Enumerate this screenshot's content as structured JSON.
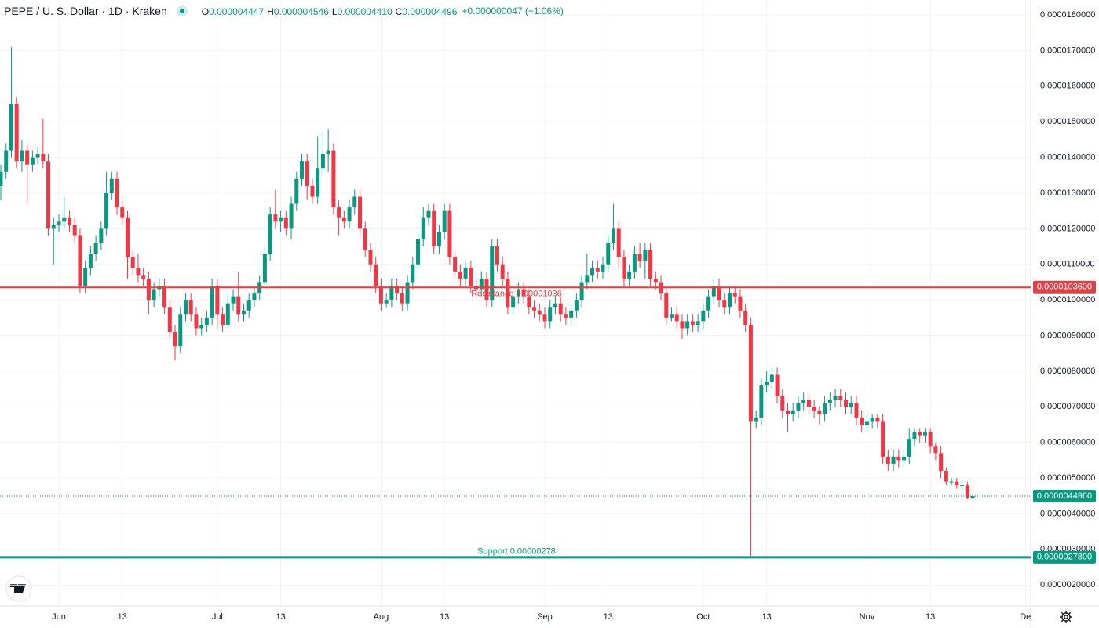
{
  "header": {
    "title": "PEPE / U. S. Dollar · 1D · Kraken",
    "ohlc": [
      {
        "key": "O",
        "text": "0.000004447"
      },
      {
        "key": "H",
        "text": "0.000004546"
      },
      {
        "key": "L",
        "text": "0.000004410"
      },
      {
        "key": "C",
        "text": "0.000004496"
      }
    ],
    "change": "+0.000000047 (+1.06%)"
  },
  "chart_data": {
    "type": "candlestick",
    "up_color": "#089981",
    "down_color": "#f23645",
    "grid": true,
    "x": [
      "May 21",
      "May 22",
      "May 23",
      "May 24",
      "May 25",
      "May 26",
      "May 27",
      "May 28",
      "May 29",
      "May 30",
      "May 31",
      "Jun 1",
      "Jun 2",
      "Jun 3",
      "Jun 4",
      "Jun 5",
      "Jun 6",
      "Jun 7",
      "Jun 8",
      "Jun 9",
      "Jun 10",
      "Jun 11",
      "Jun 12",
      "Jun 13",
      "Jun 14",
      "Jun 15",
      "Jun 16",
      "Jun 17",
      "Jun 18",
      "Jun 19",
      "Jun 20",
      "Jun 21",
      "Jun 22",
      "Jun 23",
      "Jun 24",
      "Jun 25",
      "Jun 26",
      "Jun 27",
      "Jun 28",
      "Jun 29",
      "Jun 30",
      "Jul 1",
      "Jul 2",
      "Jul 3",
      "Jul 4",
      "Jul 5",
      "Jul 6",
      "Jul 7",
      "Jul 8",
      "Jul 9",
      "Jul 10",
      "Jul 11",
      "Jul 12",
      "Jul 13",
      "Jul 14",
      "Jul 15",
      "Jul 16",
      "Jul 17",
      "Jul 18",
      "Jul 19",
      "Jul 20",
      "Jul 21",
      "Jul 22",
      "Jul 23",
      "Jul 24",
      "Jul 25",
      "Jul 26",
      "Jul 27",
      "Jul 28",
      "Jul 29",
      "Jul 30",
      "Jul 31",
      "Aug 1",
      "Aug 2",
      "Aug 3",
      "Aug 4",
      "Aug 5",
      "Aug 6",
      "Aug 7",
      "Aug 8",
      "Aug 9",
      "Aug 10",
      "Aug 11",
      "Aug 12",
      "Aug 13",
      "Aug 14",
      "Aug 15",
      "Aug 16",
      "Aug 17",
      "Aug 18",
      "Aug 19",
      "Aug 20",
      "Aug 21",
      "Aug 22",
      "Aug 23",
      "Aug 24",
      "Aug 25",
      "Aug 26",
      "Aug 27",
      "Aug 28",
      "Aug 29",
      "Aug 30",
      "Aug 31",
      "Sep 1",
      "Sep 2",
      "Sep 3",
      "Sep 4",
      "Sep 5",
      "Sep 6",
      "Sep 7",
      "Sep 8",
      "Sep 9",
      "Sep 10",
      "Sep 11",
      "Sep 12",
      "Sep 13",
      "Sep 14",
      "Sep 15",
      "Sep 16",
      "Sep 17",
      "Sep 18",
      "Sep 19",
      "Sep 20",
      "Sep 21",
      "Sep 22",
      "Sep 23",
      "Sep 24",
      "Sep 25",
      "Sep 26",
      "Sep 27",
      "Sep 28",
      "Sep 29",
      "Sep 30",
      "Oct 1",
      "Oct 2",
      "Oct 3",
      "Oct 4",
      "Oct 5",
      "Oct 6",
      "Oct 7",
      "Oct 8",
      "Oct 9",
      "Oct 10",
      "Oct 11",
      "Oct 12",
      "Oct 13",
      "Oct 14",
      "Oct 15",
      "Oct 16",
      "Oct 17",
      "Oct 18",
      "Oct 19",
      "Oct 20",
      "Oct 21",
      "Oct 22",
      "Oct 23",
      "Oct 24",
      "Oct 25",
      "Oct 26",
      "Oct 27",
      "Oct 28",
      "Oct 29",
      "Oct 30",
      "Oct 31",
      "Nov 1",
      "Nov 2",
      "Nov 3",
      "Nov 4",
      "Nov 5",
      "Nov 6",
      "Nov 7",
      "Nov 8",
      "Nov 9",
      "Nov 10",
      "Nov 11",
      "Nov 12",
      "Nov 13",
      "Nov 14",
      "Nov 15",
      "Nov 16",
      "Nov 17",
      "Nov 18",
      "Nov 19",
      "Nov 20",
      "Nov 21"
    ],
    "open": [
      1.32e-05,
      1.36e-05,
      1.42e-05,
      1.55e-05,
      1.39e-05,
      1.42e-05,
      1.38e-05,
      1.4e-05,
      1.41e-05,
      1.39e-05,
      1.2e-05,
      1.21e-05,
      1.22e-05,
      1.23e-05,
      1.21e-05,
      1.18e-05,
      1.04e-05,
      1.09e-05,
      1.13e-05,
      1.16e-05,
      1.2e-05,
      1.3e-05,
      1.34e-05,
      1.26e-05,
      1.23e-05,
      1.12e-05,
      1.09e-05,
      1.07e-05,
      1.06e-05,
      1e-05,
      1.03e-05,
      1.04e-05,
      9.8e-06,
      9.1e-06,
      8.7e-06,
      9.6e-06,
      1e-05,
      9.6e-06,
      9.2e-06,
      9.3e-06,
      9.5e-06,
      1.04e-05,
      9.6e-06,
      9.3e-06,
      9.9e-06,
      1.01e-05,
      9.6e-06,
      9.7e-06,
      1e-05,
      1.02e-05,
      1.05e-05,
      1.13e-05,
      1.24e-05,
      1.22e-05,
      1.23e-05,
      1.2e-05,
      1.27e-05,
      1.34e-05,
      1.39e-05,
      1.32e-05,
      1.29e-05,
      1.37e-05,
      1.41e-05,
      1.42e-05,
      1.26e-05,
      1.23e-05,
      1.22e-05,
      1.26e-05,
      1.29e-05,
      1.2e-05,
      1.14e-05,
      1.1e-05,
      1.04e-05,
      9.9e-06,
      1e-05,
      1.04e-05,
      1.02e-05,
      9.9e-06,
      1.05e-05,
      1.1e-05,
      1.17e-05,
      1.23e-05,
      1.25e-05,
      1.15e-05,
      1.19e-05,
      1.25e-05,
      1.12e-05,
      1.08e-05,
      1.06e-05,
      1.09e-05,
      1.04e-05,
      1.03e-05,
      1.06e-05,
      1e-05,
      1.15e-05,
      1.1e-05,
      1.06e-05,
      9.8e-06,
      1.01e-05,
      1.03e-05,
      1.01e-05,
      9.8e-06,
      9.7e-06,
      9.6e-06,
      9.4e-06,
      9.8e-06,
      9.9e-06,
      9.6e-06,
      9.5e-06,
      9.7e-06,
      1e-05,
      1.05e-05,
      1.07e-05,
      1.09e-05,
      1.08e-05,
      1.1e-05,
      1.16e-05,
      1.2e-05,
      1.12e-05,
      1.06e-05,
      1.08e-05,
      1.13e-05,
      1.11e-05,
      1.14e-05,
      1.06e-05,
      1.05e-05,
      1.02e-05,
      9.5e-06,
      9.6e-06,
      9.4e-06,
      9.2e-06,
      9.4e-06,
      9.3e-06,
      9.4e-06,
      9.7e-06,
      1.01e-05,
      1.04e-05,
      1e-05,
      9.8e-06,
      1.02e-05,
      1.01e-05,
      9.7e-06,
      9.3e-06,
      6.6e-06,
      6.7e-06,
      7.6e-06,
      7.7e-06,
      7.9e-06,
      7.3e-06,
      6.9e-06,
      6.8e-06,
      6.9e-06,
      7.1e-06,
      7.2e-06,
      7e-06,
      6.9e-06,
      6.8e-06,
      7.1e-06,
      7.2e-06,
      7.3e-06,
      7.2e-06,
      7e-06,
      7.1e-06,
      6.7e-06,
      6.5e-06,
      6.6e-06,
      6.7e-06,
      6.6e-06,
      5.6e-06,
      5.4e-06,
      5.6e-06,
      5.5e-06,
      5.6e-06,
      6.1e-06,
      6.3e-06,
      6.2e-06,
      6.3e-06,
      5.9e-06,
      5.7e-06,
      5.2e-06,
      4.9e-06,
      4.9e-06,
      4.8e-06,
      4.8e-06,
      4.447e-06
    ],
    "high": [
      1.38e-05,
      1.44e-05,
      1.71e-05,
      1.57e-05,
      1.45e-05,
      1.44e-05,
      1.42e-05,
      1.43e-05,
      1.51e-05,
      1.41e-05,
      1.23e-05,
      1.24e-05,
      1.29e-05,
      1.25e-05,
      1.23e-05,
      1.2e-05,
      1.11e-05,
      1.15e-05,
      1.18e-05,
      1.22e-05,
      1.36e-05,
      1.36e-05,
      1.36e-05,
      1.28e-05,
      1.25e-05,
      1.14e-05,
      1.13e-05,
      1.09e-05,
      1.08e-05,
      1.05e-05,
      1.06e-05,
      1.06e-05,
      1e-05,
      9.3e-06,
      9.8e-06,
      1.02e-05,
      1.02e-05,
      9.8e-06,
      9.5e-06,
      9.7e-06,
      1.06e-05,
      1.06e-05,
      9.8e-06,
      1.02e-05,
      1.03e-05,
      1.08e-05,
      9.9e-06,
      1.02e-05,
      1.04e-05,
      1.07e-05,
      1.15e-05,
      1.26e-05,
      1.31e-05,
      1.25e-05,
      1.25e-05,
      1.29e-05,
      1.36e-05,
      1.41e-05,
      1.41e-05,
      1.34e-05,
      1.46e-05,
      1.47e-05,
      1.48e-05,
      1.44e-05,
      1.28e-05,
      1.25e-05,
      1.28e-05,
      1.31e-05,
      1.31e-05,
      1.22e-05,
      1.16e-05,
      1.12e-05,
      1.06e-05,
      1.02e-05,
      1.06e-05,
      1.06e-05,
      1.04e-05,
      1.07e-05,
      1.12e-05,
      1.19e-05,
      1.26e-05,
      1.27e-05,
      1.27e-05,
      1.21e-05,
      1.27e-05,
      1.27e-05,
      1.14e-05,
      1.1e-05,
      1.11e-05,
      1.11e-05,
      1.06e-05,
      1.08e-05,
      1.08e-05,
      1.17e-05,
      1.17e-05,
      1.12e-05,
      1.08e-05,
      1.03e-05,
      1.05e-05,
      1.05e-05,
      1.03e-05,
      1e-05,
      9.9e-06,
      9.8e-06,
      1e-05,
      1.01e-05,
      1.01e-05,
      9.8e-06,
      9.9e-06,
      1.02e-05,
      1.07e-05,
      1.13e-05,
      1.11e-05,
      1.11e-05,
      1.12e-05,
      1.18e-05,
      1.27e-05,
      1.22e-05,
      1.14e-05,
      1.1e-05,
      1.15e-05,
      1.16e-05,
      1.16e-05,
      1.16e-05,
      1.08e-05,
      1.07e-05,
      1.04e-05,
      9.8e-06,
      9.8e-06,
      9.6e-06,
      9.6e-06,
      9.6e-06,
      9.6e-06,
      9.9e-06,
      1.03e-05,
      1.06e-05,
      1.06e-05,
      1.02e-05,
      1.04e-05,
      1.04e-05,
      1.03e-05,
      9.9e-06,
      9.5e-06,
      6.9e-06,
      7.8e-06,
      8e-06,
      8.1e-06,
      8.1e-06,
      7.5e-06,
      7.1e-06,
      7.1e-06,
      7.3e-06,
      7.4e-06,
      7.4e-06,
      7.2e-06,
      7e-06,
      7.3e-06,
      7.4e-06,
      7.5e-06,
      7.5e-06,
      7.4e-06,
      7.3e-06,
      7.3e-06,
      6.9e-06,
      6.8e-06,
      6.8e-06,
      6.8e-06,
      6.8e-06,
      5.8e-06,
      5.8e-06,
      5.8e-06,
      5.8e-06,
      6.4e-06,
      6.4e-06,
      6.4e-06,
      6.4e-06,
      6.4e-06,
      6e-06,
      5.9e-06,
      5.3e-06,
      5e-06,
      5e-06,
      5e-06,
      4.9e-06,
      4.546e-06
    ],
    "low": [
      1.28e-05,
      1.34e-05,
      1.4e-05,
      1.37e-05,
      1.36e-05,
      1.27e-05,
      1.36e-05,
      1.38e-05,
      1.37e-05,
      1.18e-05,
      1.1e-05,
      1.19e-05,
      1.2e-05,
      1.19e-05,
      1.16e-05,
      1.02e-05,
      1.02e-05,
      1.07e-05,
      1.11e-05,
      1.14e-05,
      1.18e-05,
      1.28e-05,
      1.24e-05,
      1.21e-05,
      1.06e-05,
      1.07e-05,
      1.05e-05,
      1.04e-05,
      9.6e-06,
      9.8e-06,
      1.01e-05,
      9.6e-06,
      8.9e-06,
      8.3e-06,
      8.5e-06,
      9.4e-06,
      9.4e-06,
      9e-06,
      9e-06,
      9.1e-06,
      9.3e-06,
      9.2e-06,
      9.1e-06,
      9.2e-06,
      9.7e-06,
      9.4e-06,
      9.4e-06,
      9.5e-06,
      9.8e-06,
      1e-05,
      1.03e-05,
      1.11e-05,
      1.2e-05,
      1.19e-05,
      1.18e-05,
      1.17e-05,
      1.25e-05,
      1.32e-05,
      1.28e-05,
      1.27e-05,
      1.27e-05,
      1.35e-05,
      1.36e-05,
      1.24e-05,
      1.18e-05,
      1.2e-05,
      1.2e-05,
      1.24e-05,
      1.18e-05,
      1.12e-05,
      1.08e-05,
      1.02e-05,
      9.7e-06,
      9.8e-06,
      9.8e-06,
      1e-05,
      9.7e-06,
      9.7e-06,
      1.03e-05,
      1.08e-05,
      1.15e-05,
      1.21e-05,
      1.13e-05,
      1.13e-05,
      1.17e-05,
      1.1e-05,
      1.06e-05,
      1.04e-05,
      1.04e-05,
      1.02e-05,
      1.01e-05,
      1.01e-05,
      9.8e-06,
      9.8e-06,
      1.08e-05,
      1.04e-05,
      9.6e-06,
      9.6e-06,
      9.9e-06,
      9.9e-06,
      9.6e-06,
      9.5e-06,
      9.4e-06,
      9.2e-06,
      9.2e-06,
      9.6e-06,
      9.4e-06,
      9.3e-06,
      9.3e-06,
      9.5e-06,
      9.8e-06,
      1.03e-05,
      1.05e-05,
      1.06e-05,
      1.06e-05,
      1.08e-05,
      1.14e-05,
      1.09e-05,
      1.04e-05,
      1.04e-05,
      1.06e-05,
      1.09e-05,
      1.06e-05,
      1.04e-05,
      1.03e-05,
      1e-05,
      9.3e-06,
      9.4e-06,
      9.2e-06,
      8.9e-06,
      9e-06,
      9.1e-06,
      9.1e-06,
      9.2e-06,
      9.5e-06,
      9.9e-06,
      9.8e-06,
      9.6e-06,
      9.6e-06,
      9.9e-06,
      9.5e-06,
      9.1e-06,
      2.78e-06,
      6.4e-06,
      6.5e-06,
      7.4e-06,
      7.5e-06,
      7.1e-06,
      6.7e-06,
      6.3e-06,
      6.6e-06,
      6.7e-06,
      6.9e-06,
      6.8e-06,
      6.7e-06,
      6.5e-06,
      6.6e-06,
      6.9e-06,
      7e-06,
      7e-06,
      6.8e-06,
      6.8e-06,
      6.5e-06,
      6.3e-06,
      6.3e-06,
      6.4e-06,
      6.4e-06,
      5.4e-06,
      5.2e-06,
      5.2e-06,
      5.3e-06,
      5.3e-06,
      5.4e-06,
      5.9e-06,
      6e-06,
      6e-06,
      5.7e-06,
      5.5e-06,
      5e-06,
      4.8e-06,
      4.8e-06,
      4.7e-06,
      4.6e-06,
      4.4e-06,
      4.41e-06
    ],
    "close": [
      1.36e-05,
      1.42e-05,
      1.55e-05,
      1.39e-05,
      1.42e-05,
      1.38e-05,
      1.4e-05,
      1.41e-05,
      1.39e-05,
      1.2e-05,
      1.21e-05,
      1.22e-05,
      1.23e-05,
      1.21e-05,
      1.18e-05,
      1.04e-05,
      1.09e-05,
      1.13e-05,
      1.16e-05,
      1.2e-05,
      1.3e-05,
      1.34e-05,
      1.26e-05,
      1.23e-05,
      1.12e-05,
      1.09e-05,
      1.07e-05,
      1.06e-05,
      1e-05,
      1.03e-05,
      1.04e-05,
      9.8e-06,
      9.1e-06,
      8.7e-06,
      9.6e-06,
      1e-05,
      9.6e-06,
      9.2e-06,
      9.3e-06,
      9.5e-06,
      1.04e-05,
      9.6e-06,
      9.3e-06,
      9.9e-06,
      1.01e-05,
      9.6e-06,
      9.7e-06,
      1e-05,
      1.02e-05,
      1.05e-05,
      1.13e-05,
      1.24e-05,
      1.22e-05,
      1.23e-05,
      1.2e-05,
      1.27e-05,
      1.34e-05,
      1.39e-05,
      1.32e-05,
      1.29e-05,
      1.37e-05,
      1.41e-05,
      1.42e-05,
      1.26e-05,
      1.23e-05,
      1.22e-05,
      1.26e-05,
      1.29e-05,
      1.2e-05,
      1.14e-05,
      1.1e-05,
      1.04e-05,
      9.9e-06,
      1e-05,
      1.04e-05,
      1.02e-05,
      9.9e-06,
      1.05e-05,
      1.1e-05,
      1.17e-05,
      1.23e-05,
      1.25e-05,
      1.15e-05,
      1.19e-05,
      1.25e-05,
      1.12e-05,
      1.08e-05,
      1.06e-05,
      1.09e-05,
      1.04e-05,
      1.03e-05,
      1.06e-05,
      1e-05,
      1.15e-05,
      1.1e-05,
      1.06e-05,
      9.8e-06,
      1.01e-05,
      1.03e-05,
      1.01e-05,
      9.8e-06,
      9.7e-06,
      9.6e-06,
      9.4e-06,
      9.8e-06,
      9.9e-06,
      9.6e-06,
      9.5e-06,
      9.7e-06,
      1e-05,
      1.05e-05,
      1.07e-05,
      1.09e-05,
      1.08e-05,
      1.1e-05,
      1.16e-05,
      1.2e-05,
      1.12e-05,
      1.06e-05,
      1.08e-05,
      1.13e-05,
      1.11e-05,
      1.14e-05,
      1.06e-05,
      1.05e-05,
      1.02e-05,
      9.5e-06,
      9.6e-06,
      9.4e-06,
      9.2e-06,
      9.4e-06,
      9.3e-06,
      9.4e-06,
      9.7e-06,
      1.01e-05,
      1.04e-05,
      1e-05,
      9.8e-06,
      1.02e-05,
      1.01e-05,
      9.7e-06,
      9.3e-06,
      6.6e-06,
      6.7e-06,
      7.6e-06,
      7.7e-06,
      7.9e-06,
      7.3e-06,
      6.9e-06,
      6.8e-06,
      6.9e-06,
      7.1e-06,
      7.2e-06,
      7e-06,
      6.9e-06,
      6.8e-06,
      7.1e-06,
      7.2e-06,
      7.3e-06,
      7.2e-06,
      7e-06,
      7.1e-06,
      6.7e-06,
      6.5e-06,
      6.6e-06,
      6.7e-06,
      6.6e-06,
      5.6e-06,
      5.4e-06,
      5.6e-06,
      5.5e-06,
      5.6e-06,
      6.1e-06,
      6.3e-06,
      6.2e-06,
      6.3e-06,
      5.9e-06,
      5.7e-06,
      5.2e-06,
      4.9e-06,
      4.9e-06,
      4.8e-06,
      4.8e-06,
      4.449e-06,
      4.496e-06
    ],
    "xlim": [
      "May 21",
      "Dec 2"
    ],
    "xticks": [
      {
        "value": "Jun 1",
        "label": "Jun"
      },
      {
        "value": "Jun 13",
        "label": "13"
      },
      {
        "value": "Jul 1",
        "label": "Jul"
      },
      {
        "value": "Jul 13",
        "label": "13"
      },
      {
        "value": "Aug 1",
        "label": "Aug"
      },
      {
        "value": "Aug 13",
        "label": "13"
      },
      {
        "value": "Sep 1",
        "label": "Sep"
      },
      {
        "value": "Sep 13",
        "label": "13"
      },
      {
        "value": "Oct 1",
        "label": "Oct"
      },
      {
        "value": "Oct 13",
        "label": "13"
      },
      {
        "value": "Nov 1",
        "label": "Nov"
      },
      {
        "value": "Nov 13",
        "label": "13"
      },
      {
        "value": "Dec 1",
        "label": "De"
      }
    ],
    "ylim": [
      1.41e-06,
      1.842e-05
    ],
    "yticks": [
      {
        "value": 2e-06,
        "label": "0.0000020000"
      },
      {
        "value": 3e-06,
        "label": "0.0000030000"
      },
      {
        "value": 4e-06,
        "label": "0.0000040000"
      },
      {
        "value": 5e-06,
        "label": "0.0000050000"
      },
      {
        "value": 6e-06,
        "label": "0.0000060000"
      },
      {
        "value": 7e-06,
        "label": "0.0000070000"
      },
      {
        "value": 8e-06,
        "label": "0.0000080000"
      },
      {
        "value": 9e-06,
        "label": "0.0000090000"
      },
      {
        "value": 1e-05,
        "label": "0.0000100000"
      },
      {
        "value": 1.1e-05,
        "label": "0.0000110000"
      },
      {
        "value": 1.2e-05,
        "label": "0.0000120000"
      },
      {
        "value": 1.3e-05,
        "label": "0.0000130000"
      },
      {
        "value": 1.4e-05,
        "label": "0.0000140000"
      },
      {
        "value": 1.5e-05,
        "label": "0.0000150000"
      },
      {
        "value": 1.6e-05,
        "label": "0.0000160000"
      },
      {
        "value": 1.7e-05,
        "label": "0.0000170000"
      },
      {
        "value": 1.8e-05,
        "label": "0.0000180000"
      }
    ],
    "levels": [
      {
        "value": 1.036e-05,
        "label": "Resistance 0.00001036",
        "axis_label": "0.0000103600",
        "color": "#d9434a"
      },
      {
        "value": 2.78e-06,
        "label": "Support 0.00000278",
        "axis_label": "0.0000027800",
        "color": "#089981"
      }
    ],
    "last_price": {
      "value": 4.496e-06,
      "axis_label": "0.0000044960",
      "color": "#089981"
    }
  }
}
